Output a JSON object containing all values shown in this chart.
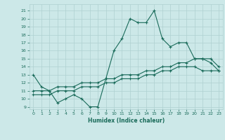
{
  "xlabel": "Humidex (Indice chaleur)",
  "ylabel": "",
  "bg_color": "#cce8e8",
  "grid_color": "#afd0d0",
  "line_color": "#1a6b5a",
  "xlim": [
    -0.5,
    23.5
  ],
  "ylim": [
    8.7,
    21.8
  ],
  "yticks": [
    9,
    10,
    11,
    12,
    13,
    14,
    15,
    16,
    17,
    18,
    19,
    20,
    21
  ],
  "xticks": [
    0,
    1,
    2,
    3,
    4,
    5,
    6,
    7,
    8,
    9,
    10,
    11,
    12,
    13,
    14,
    15,
    16,
    17,
    18,
    19,
    20,
    21,
    22,
    23
  ],
  "line1_x": [
    0,
    1,
    2,
    3,
    4,
    5,
    6,
    7,
    8,
    9,
    10,
    11,
    12,
    13,
    14,
    15,
    16,
    17,
    18,
    19,
    20,
    21,
    22,
    23
  ],
  "line1_y": [
    13.0,
    11.5,
    11.0,
    9.5,
    10.0,
    10.5,
    10.0,
    9.0,
    9.0,
    12.5,
    16.0,
    17.5,
    20.0,
    19.5,
    19.5,
    21.0,
    17.5,
    16.5,
    17.0,
    17.0,
    15.0,
    15.0,
    14.5,
    13.5
  ],
  "line2_x": [
    0,
    1,
    2,
    3,
    4,
    5,
    6,
    7,
    8,
    9,
    10,
    11,
    12,
    13,
    14,
    15,
    16,
    17,
    18,
    19,
    20,
    21,
    22,
    23
  ],
  "line2_y": [
    11.0,
    11.0,
    11.0,
    11.5,
    11.5,
    11.5,
    12.0,
    12.0,
    12.0,
    12.5,
    12.5,
    13.0,
    13.0,
    13.0,
    13.5,
    13.5,
    14.0,
    14.0,
    14.5,
    14.5,
    15.0,
    15.0,
    15.0,
    14.0
  ],
  "line3_x": [
    0,
    1,
    2,
    3,
    4,
    5,
    6,
    7,
    8,
    9,
    10,
    11,
    12,
    13,
    14,
    15,
    16,
    17,
    18,
    19,
    20,
    21,
    22,
    23
  ],
  "line3_y": [
    10.5,
    10.5,
    10.5,
    11.0,
    11.0,
    11.0,
    11.5,
    11.5,
    11.5,
    12.0,
    12.0,
    12.5,
    12.5,
    12.5,
    13.0,
    13.0,
    13.5,
    13.5,
    14.0,
    14.0,
    14.0,
    13.5,
    13.5,
    13.5
  ]
}
